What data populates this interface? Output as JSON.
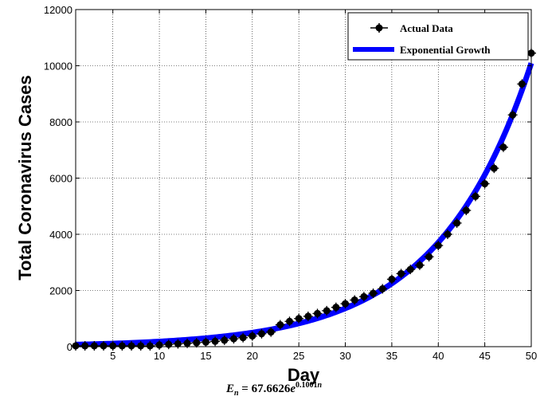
{
  "chart_data": {
    "type": "line",
    "xlabel": "Day",
    "ylabel": "Total Coronavirus Cases",
    "xlim": [
      1,
      50
    ],
    "ylim": [
      0,
      12000
    ],
    "x_ticks": [
      5,
      10,
      15,
      20,
      25,
      30,
      35,
      40,
      45,
      50
    ],
    "y_ticks": [
      0,
      2000,
      4000,
      6000,
      8000,
      10000,
      12000
    ],
    "grid": true,
    "legend_position": "top-right",
    "series": [
      {
        "name": "Actual Data",
        "style": "markers",
        "color": "#000000",
        "x": [
          1,
          2,
          3,
          4,
          5,
          6,
          7,
          8,
          9,
          10,
          11,
          12,
          13,
          14,
          15,
          16,
          17,
          18,
          19,
          20,
          21,
          22,
          23,
          24,
          25,
          26,
          27,
          28,
          29,
          30,
          31,
          32,
          33,
          34,
          35,
          36,
          37,
          38,
          39,
          40,
          41,
          42,
          43,
          44,
          45,
          46,
          47,
          48,
          49,
          50
        ],
        "y": [
          30,
          30,
          30,
          30,
          30,
          30,
          30,
          30,
          30,
          60,
          80,
          100,
          120,
          140,
          160,
          190,
          230,
          280,
          320,
          380,
          460,
          520,
          780,
          900,
          1000,
          1080,
          1180,
          1280,
          1400,
          1530,
          1660,
          1780,
          1900,
          2060,
          2400,
          2600,
          2750,
          2900,
          3200,
          3600,
          4000,
          4400,
          4850,
          5350,
          5800,
          6350,
          7100,
          8250,
          9350,
          10450
        ]
      },
      {
        "name": "Exponential Growth",
        "style": "line",
        "color": "#0000ff"
      }
    ],
    "model": {
      "a": 67.6626,
      "b": 0.1001
    }
  },
  "equation": {
    "lhs_var": "E",
    "lhs_sub": "n",
    "equals_coef": " = 67.6626",
    "base": "e",
    "exponent": "0.1001",
    "exponent_var": "n"
  }
}
